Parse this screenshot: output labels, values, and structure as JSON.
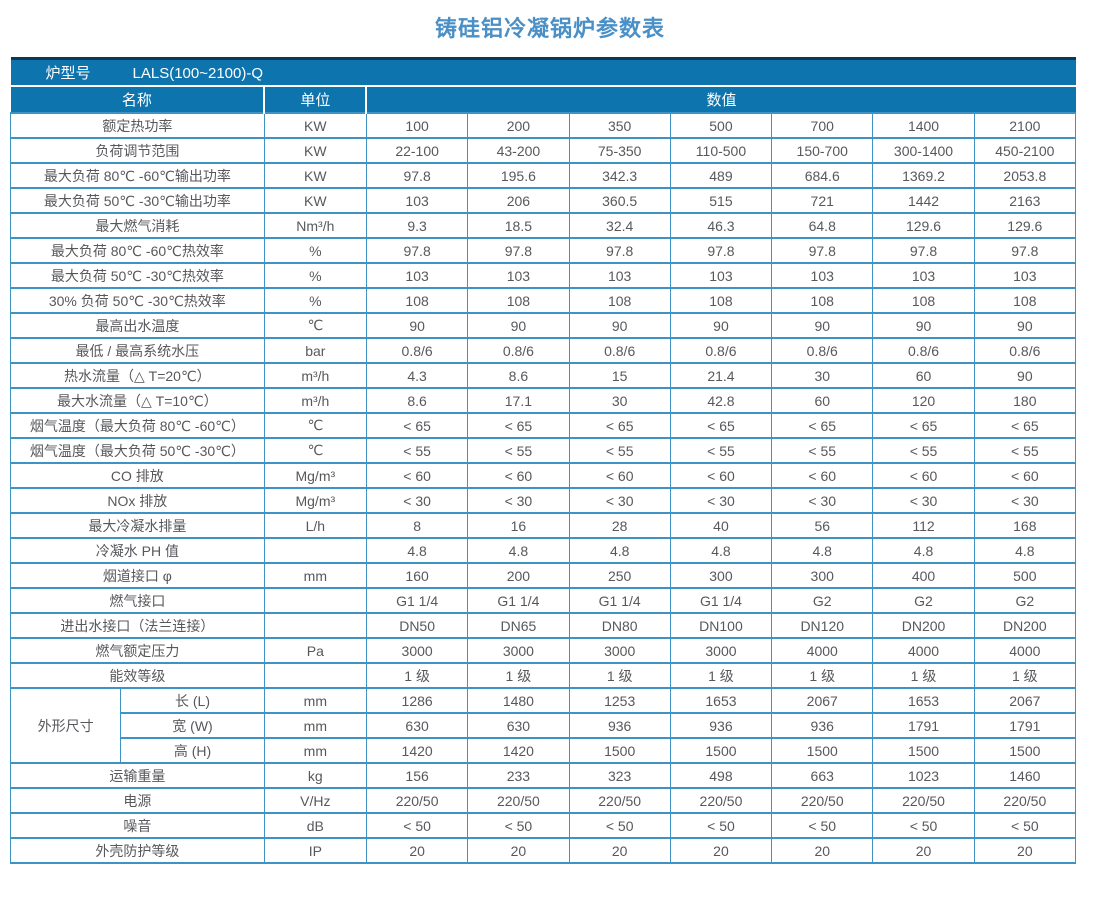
{
  "title": "铸硅铝冷凝锅炉参数表",
  "colors": {
    "header_bg": "#0e74ae",
    "border": "#3f92c4",
    "title": "#4a90c6",
    "text": "#57585c",
    "top_strip": "#0d3852"
  },
  "table": {
    "model_row": {
      "label": "炉型号",
      "value": "LALS(100~2100)-Q"
    },
    "headers": {
      "name": "名称",
      "unit": "单位",
      "values": "数值"
    },
    "rows": [
      {
        "name": "额定热功率",
        "unit": "KW",
        "values": [
          "100",
          "200",
          "350",
          "500",
          "700",
          "1400",
          "2100"
        ]
      },
      {
        "name": "负荷调节范围",
        "unit": "KW",
        "values": [
          "22-100",
          "43-200",
          "75-350",
          "110-500",
          "150-700",
          "300-1400",
          "450-2100"
        ]
      },
      {
        "name": "最大负荷 80℃ -60℃输出功率",
        "unit": "KW",
        "values": [
          "97.8",
          "195.6",
          "342.3",
          "489",
          "684.6",
          "1369.2",
          "2053.8"
        ]
      },
      {
        "name": "最大负荷 50℃ -30℃输出功率",
        "unit": "KW",
        "values": [
          "103",
          "206",
          "360.5",
          "515",
          "721",
          "1442",
          "2163"
        ]
      },
      {
        "name": "最大燃气消耗",
        "unit": "Nm³/h",
        "values": [
          "9.3",
          "18.5",
          "32.4",
          "46.3",
          "64.8",
          "129.6",
          "129.6"
        ]
      },
      {
        "name": "最大负荷 80℃ -60℃热效率",
        "unit": "%",
        "values": [
          "97.8",
          "97.8",
          "97.8",
          "97.8",
          "97.8",
          "97.8",
          "97.8"
        ]
      },
      {
        "name": "最大负荷 50℃ -30℃热效率",
        "unit": "%",
        "values": [
          "103",
          "103",
          "103",
          "103",
          "103",
          "103",
          "103"
        ]
      },
      {
        "name": "30% 负荷 50℃ -30℃热效率",
        "unit": "%",
        "values": [
          "108",
          "108",
          "108",
          "108",
          "108",
          "108",
          "108"
        ]
      },
      {
        "name": "最高出水温度",
        "unit": "℃",
        "values": [
          "90",
          "90",
          "90",
          "90",
          "90",
          "90",
          "90"
        ]
      },
      {
        "name": "最低 / 最高系统水压",
        "unit": "bar",
        "values": [
          "0.8/6",
          "0.8/6",
          "0.8/6",
          "0.8/6",
          "0.8/6",
          "0.8/6",
          "0.8/6"
        ]
      },
      {
        "name": "热水流量（△ T=20℃）",
        "unit": "m³/h",
        "values": [
          "4.3",
          "8.6",
          "15",
          "21.4",
          "30",
          "60",
          "90"
        ]
      },
      {
        "name": "最大水流量（△ T=10℃）",
        "unit": "m³/h",
        "values": [
          "8.6",
          "17.1",
          "30",
          "42.8",
          "60",
          "120",
          "180"
        ]
      },
      {
        "name": "烟气温度（最大负荷 80℃ -60℃）",
        "unit": "℃",
        "values": [
          "< 65",
          "< 65",
          "< 65",
          "< 65",
          "< 65",
          "< 65",
          "< 65"
        ]
      },
      {
        "name": "烟气温度（最大负荷 50℃ -30℃）",
        "unit": "℃",
        "values": [
          "< 55",
          "< 55",
          "< 55",
          "< 55",
          "< 55",
          "< 55",
          "< 55"
        ]
      },
      {
        "name": "CO 排放",
        "unit": "Mg/m³",
        "values": [
          "< 60",
          "< 60",
          "< 60",
          "< 60",
          "< 60",
          "< 60",
          "< 60"
        ]
      },
      {
        "name": "NOx 排放",
        "unit": "Mg/m³",
        "values": [
          "< 30",
          "< 30",
          "< 30",
          "< 30",
          "< 30",
          "< 30",
          "< 30"
        ]
      },
      {
        "name": "最大冷凝水排量",
        "unit": "L/h",
        "values": [
          "8",
          "16",
          "28",
          "40",
          "56",
          "112",
          "168"
        ]
      },
      {
        "name": "冷凝水 PH 值",
        "unit": "",
        "values": [
          "4.8",
          "4.8",
          "4.8",
          "4.8",
          "4.8",
          "4.8",
          "4.8"
        ]
      },
      {
        "name": "烟道接口 φ",
        "unit": "mm",
        "values": [
          "160",
          "200",
          "250",
          "300",
          "300",
          "400",
          "500"
        ]
      },
      {
        "name": "燃气接口",
        "unit": "",
        "values": [
          "G1 1/4",
          "G1 1/4",
          "G1 1/4",
          "G1 1/4",
          "G2",
          "G2",
          "G2"
        ]
      },
      {
        "name": "进出水接口（法兰连接）",
        "unit": "",
        "values": [
          "DN50",
          "DN65",
          "DN80",
          "DN100",
          "DN120",
          "DN200",
          "DN200"
        ]
      },
      {
        "name": "燃气额定压力",
        "unit": "Pa",
        "values": [
          "3000",
          "3000",
          "3000",
          "3000",
          "4000",
          "4000",
          "4000"
        ]
      },
      {
        "name": "能效等级",
        "unit": "",
        "values": [
          "1 级",
          "1 级",
          "1 级",
          "1 级",
          "1 级",
          "1 级",
          "1 级"
        ]
      },
      {
        "group_label": "外形尺寸",
        "group_span": 3,
        "name": "长 (L)",
        "unit": "mm",
        "values": [
          "1286",
          "1480",
          "1253",
          "1653",
          "2067",
          "1653",
          "2067"
        ]
      },
      {
        "group_member": true,
        "name": "宽 (W)",
        "unit": "mm",
        "values": [
          "630",
          "630",
          "936",
          "936",
          "936",
          "1791",
          "1791"
        ]
      },
      {
        "group_member": true,
        "name": "高 (H)",
        "unit": "mm",
        "values": [
          "1420",
          "1420",
          "1500",
          "1500",
          "1500",
          "1500",
          "1500"
        ]
      },
      {
        "name": "运输重量",
        "unit": "kg",
        "values": [
          "156",
          "233",
          "323",
          "498",
          "663",
          "1023",
          "1460"
        ]
      },
      {
        "name": "电源",
        "unit": "V/Hz",
        "values": [
          "220/50",
          "220/50",
          "220/50",
          "220/50",
          "220/50",
          "220/50",
          "220/50"
        ]
      },
      {
        "name": "噪音",
        "unit": "dB",
        "values": [
          "< 50",
          "< 50",
          "< 50",
          "< 50",
          "< 50",
          "< 50",
          "< 50"
        ]
      },
      {
        "name": "外壳防护等级",
        "unit": "IP",
        "values": [
          "20",
          "20",
          "20",
          "20",
          "20",
          "20",
          "20"
        ]
      }
    ]
  }
}
